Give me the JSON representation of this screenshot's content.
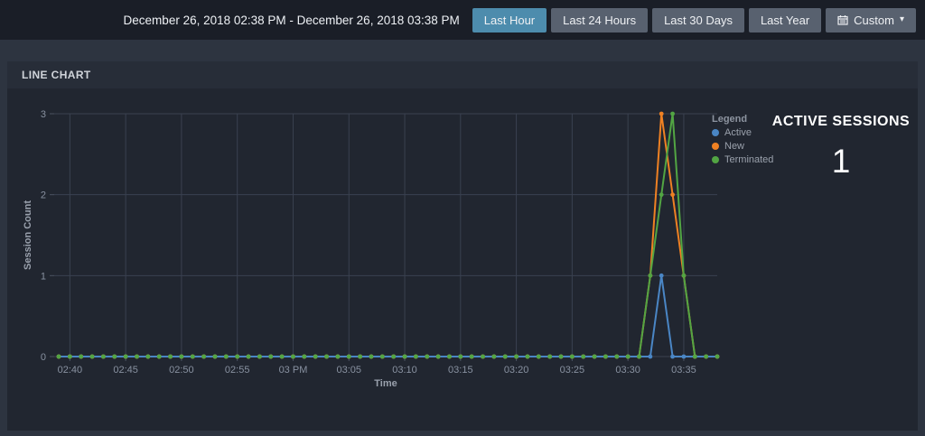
{
  "topbar": {
    "date_range": "December 26, 2018 02:38 PM - December 26, 2018 03:38 PM",
    "buttons": [
      {
        "label": "Last Hour",
        "active": true
      },
      {
        "label": "Last 24 Hours",
        "active": false
      },
      {
        "label": "Last 30 Days",
        "active": false
      },
      {
        "label": "Last Year",
        "active": false
      }
    ],
    "custom_button": {
      "label": "Custom",
      "icon": "calendar-icon",
      "caret": "▾"
    }
  },
  "panel": {
    "title": "LINE CHART"
  },
  "legend": {
    "title": "Legend",
    "items": [
      {
        "label": "Active",
        "color": "#4a86c5"
      },
      {
        "label": "New",
        "color": "#ef8123"
      },
      {
        "label": "Terminated",
        "color": "#52a543"
      }
    ]
  },
  "summary": {
    "title": "ACTIVE SESSIONS",
    "value": "1"
  },
  "chart_data": {
    "type": "line",
    "title": "LINE CHART",
    "xlabel": "Time",
    "ylabel": "Session Count",
    "ylim": [
      0,
      3
    ],
    "yticks": [
      0,
      1,
      2,
      3
    ],
    "xticks": [
      "02:40",
      "02:45",
      "02:50",
      "02:55",
      "03 PM",
      "03:05",
      "03:10",
      "03:15",
      "03:20",
      "03:25",
      "03:30",
      "03:35"
    ],
    "grid": true,
    "legend_position": "top-right",
    "x": [
      "02:39",
      "02:40",
      "02:41",
      "02:42",
      "02:43",
      "02:44",
      "02:45",
      "02:46",
      "02:47",
      "02:48",
      "02:49",
      "02:50",
      "02:51",
      "02:52",
      "02:53",
      "02:54",
      "02:55",
      "02:56",
      "02:57",
      "02:58",
      "02:59",
      "03:00",
      "03:01",
      "03:02",
      "03:03",
      "03:04",
      "03:05",
      "03:06",
      "03:07",
      "03:08",
      "03:09",
      "03:10",
      "03:11",
      "03:12",
      "03:13",
      "03:14",
      "03:15",
      "03:16",
      "03:17",
      "03:18",
      "03:19",
      "03:20",
      "03:21",
      "03:22",
      "03:23",
      "03:24",
      "03:25",
      "03:26",
      "03:27",
      "03:28",
      "03:29",
      "03:30",
      "03:31",
      "03:32",
      "03:33",
      "03:34",
      "03:35",
      "03:36",
      "03:37",
      "03:38"
    ],
    "series": [
      {
        "name": "Active",
        "color": "#4a86c5",
        "values": [
          0,
          0,
          0,
          0,
          0,
          0,
          0,
          0,
          0,
          0,
          0,
          0,
          0,
          0,
          0,
          0,
          0,
          0,
          0,
          0,
          0,
          0,
          0,
          0,
          0,
          0,
          0,
          0,
          0,
          0,
          0,
          0,
          0,
          0,
          0,
          0,
          0,
          0,
          0,
          0,
          0,
          0,
          0,
          0,
          0,
          0,
          0,
          0,
          0,
          0,
          0,
          0,
          0,
          0,
          1,
          0,
          0,
          0,
          0,
          0
        ]
      },
      {
        "name": "New",
        "color": "#ef8123",
        "values": [
          0,
          0,
          0,
          0,
          0,
          0,
          0,
          0,
          0,
          0,
          0,
          0,
          0,
          0,
          0,
          0,
          0,
          0,
          0,
          0,
          0,
          0,
          0,
          0,
          0,
          0,
          0,
          0,
          0,
          0,
          0,
          0,
          0,
          0,
          0,
          0,
          0,
          0,
          0,
          0,
          0,
          0,
          0,
          0,
          0,
          0,
          0,
          0,
          0,
          0,
          0,
          0,
          0,
          1,
          3,
          2,
          1,
          0,
          0,
          0
        ]
      },
      {
        "name": "Terminated",
        "color": "#52a543",
        "values": [
          0,
          0,
          0,
          0,
          0,
          0,
          0,
          0,
          0,
          0,
          0,
          0,
          0,
          0,
          0,
          0,
          0,
          0,
          0,
          0,
          0,
          0,
          0,
          0,
          0,
          0,
          0,
          0,
          0,
          0,
          0,
          0,
          0,
          0,
          0,
          0,
          0,
          0,
          0,
          0,
          0,
          0,
          0,
          0,
          0,
          0,
          0,
          0,
          0,
          0,
          0,
          0,
          0,
          1,
          2,
          3,
          1,
          0,
          0,
          0
        ]
      }
    ]
  },
  "chart_style": {
    "grid_color": "#3a4150",
    "tick_text_color": "#8891a0",
    "axis_title_color": "#99a0ac"
  }
}
